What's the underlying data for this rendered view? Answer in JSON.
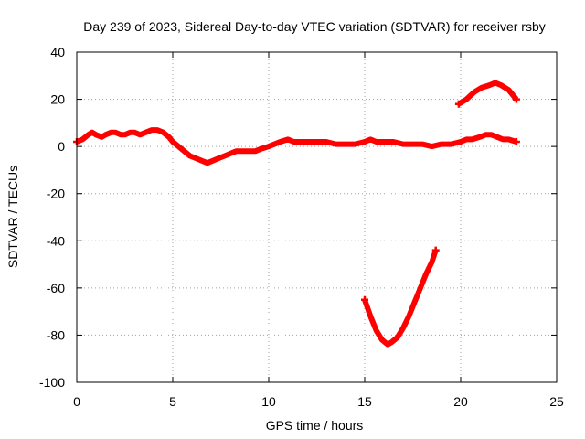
{
  "chart_data": {
    "type": "line",
    "title": "Day 239 of 2023, Sidereal Day-to-day VTEC variation (SDTVAR) for receiver rsby",
    "xlabel": "GPS time / hours",
    "ylabel": "SDTVAR / TECUs",
    "xlim": [
      0,
      25
    ],
    "ylim": [
      -100,
      40
    ],
    "xticks": [
      0,
      5,
      10,
      15,
      20,
      25
    ],
    "yticks": [
      -100,
      -80,
      -60,
      -40,
      -20,
      0,
      20,
      40
    ],
    "grid": true,
    "series_color": "#ff0000",
    "series": [
      {
        "name": "main",
        "x": [
          0.0,
          0.3,
          0.6,
          0.8,
          1.0,
          1.3,
          1.5,
          1.8,
          2.0,
          2.3,
          2.5,
          2.8,
          3.0,
          3.3,
          3.6,
          3.9,
          4.2,
          4.5,
          4.8,
          5.0,
          5.3,
          5.6,
          5.9,
          6.2,
          6.5,
          6.8,
          7.1,
          7.4,
          7.7,
          8.0,
          8.3,
          8.6,
          9.0,
          9.3,
          9.6,
          10.0,
          10.3,
          10.6,
          11.0,
          11.3,
          11.6,
          12.0,
          12.5,
          13.0,
          13.5,
          14.0,
          14.5,
          15.0,
          15.3,
          15.6,
          16.0,
          16.5,
          17.0,
          17.5,
          18.0,
          18.5,
          19.0,
          19.5,
          20.0,
          20.3,
          20.6,
          21.0,
          21.3,
          21.6,
          21.9,
          22.2,
          22.5,
          22.9
        ],
        "y": [
          2,
          3,
          5,
          6,
          5,
          4,
          5,
          6,
          6,
          5,
          5,
          6,
          6,
          5,
          6,
          7,
          7,
          6,
          4,
          2,
          0,
          -2,
          -4,
          -5,
          -6,
          -7,
          -6,
          -5,
          -4,
          -3,
          -2,
          -2,
          -2,
          -2,
          -1,
          0,
          1,
          2,
          3,
          2,
          2,
          2,
          2,
          2,
          1,
          1,
          1,
          2,
          3,
          2,
          2,
          2,
          1,
          1,
          1,
          0,
          1,
          1,
          2,
          3,
          3,
          4,
          5,
          5,
          4,
          3,
          3,
          2
        ]
      },
      {
        "name": "upper-arc",
        "x": [
          19.9,
          20.3,
          20.7,
          21.1,
          21.5,
          21.8,
          22.1,
          22.5,
          22.9
        ],
        "y": [
          18,
          20,
          23,
          25,
          26,
          27,
          26,
          24,
          20
        ]
      },
      {
        "name": "lower-arc",
        "x": [
          15.0,
          15.3,
          15.6,
          15.9,
          16.2,
          16.4,
          16.7,
          17.0,
          17.3,
          17.6,
          17.9,
          18.2,
          18.5,
          18.7
        ],
        "y": [
          -65,
          -72,
          -78,
          -82,
          -84,
          -83,
          -81,
          -77,
          -72,
          -66,
          -60,
          -54,
          -49,
          -44
        ]
      }
    ]
  }
}
